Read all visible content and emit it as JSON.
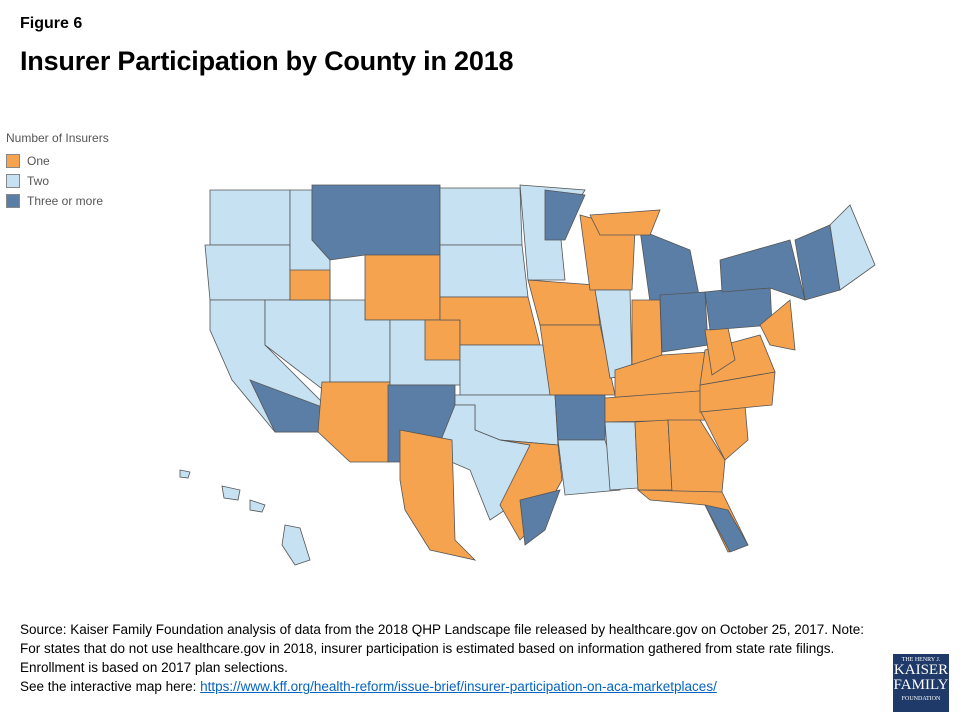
{
  "figure_label": "Figure 6",
  "title": "Insurer Participation by County in 2018",
  "legend": {
    "title": "Number of Insurers",
    "items": [
      {
        "label": "One",
        "color": "#f5a34f"
      },
      {
        "label": "Two",
        "color": "#c6e1f2"
      },
      {
        "label": "Three or more",
        "color": "#5b7ea6"
      }
    ]
  },
  "map": {
    "border_color": "#555555"
  },
  "source": {
    "text": "Source: Kaiser Family Foundation  analysis of data from  the 2018 QHP Landscape file released by healthcare.gov on October 25, 2017. Note: For states that do not use healthcare.gov in 2018, insurer participation is estimated based on  information gathered from state rate filings. Enrollment is based on 2017 plan selections.",
    "link_prefix": "See the interactive map here: ",
    "link": "https://www.kff.org/health-reform/issue-brief/insurer-participation-on-aca-marketplaces/"
  },
  "logo": {
    "line1": "THE HENRY J.",
    "line2": "KAISER",
    "line3": "FAMILY",
    "line4": "FOUNDATION"
  }
}
